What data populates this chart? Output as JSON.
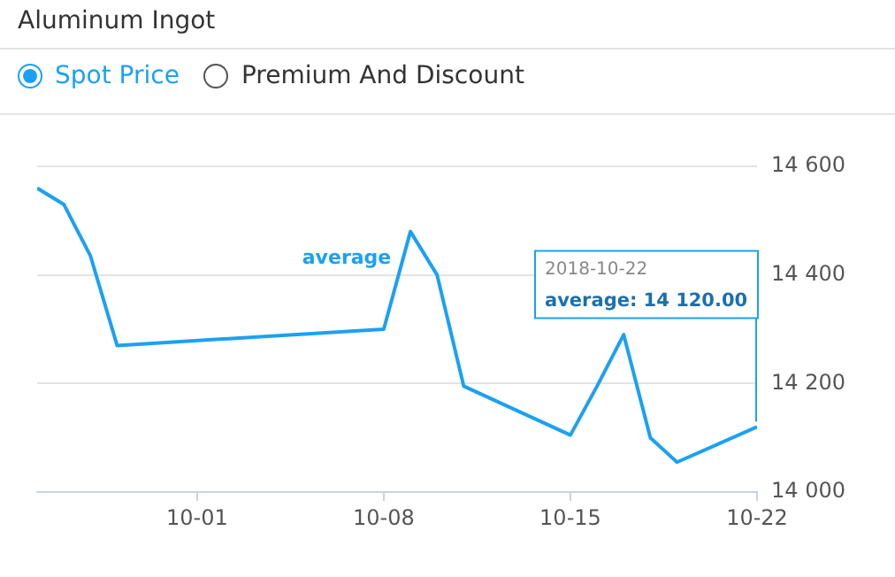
{
  "chart_data": {
    "type": "line",
    "title": "Aluminum Ingot",
    "annotations": [
      "Spot Price",
      "Premium And Discount",
      "2018-10-22",
      "average: 14 120.00"
    ],
    "x": [
      "2018-09-25",
      "2018-09-26",
      "2018-09-27",
      "2018-09-28",
      "2018-10-08",
      "2018-10-09",
      "2018-10-10",
      "2018-10-11",
      "2018-10-15",
      "2018-10-16",
      "2018-10-17",
      "2018-10-18",
      "2018-10-19",
      "2018-10-22"
    ],
    "series": [
      {
        "name": "average",
        "color": "#1ba1f2",
        "values": [
          14560,
          14530,
          14435,
          14270,
          14300,
          14480,
          14400,
          14195,
          14105,
          14195,
          14290,
          14100,
          14055,
          14120
        ]
      }
    ],
    "xlim": [
      "2018-09-25",
      "2018-10-22"
    ],
    "xticks": [
      {
        "value": "2018-10-01",
        "label": "10-01"
      },
      {
        "value": "2018-10-08",
        "label": "10-08"
      },
      {
        "value": "2018-10-15",
        "label": "10-15"
      },
      {
        "value": "2018-10-22",
        "label": "10-22"
      }
    ],
    "ylim": [
      14000,
      14600
    ],
    "yticks": [
      {
        "value": 14000,
        "label": "14 000"
      },
      {
        "value": 14200,
        "label": "14 200"
      },
      {
        "value": 14400,
        "label": "14 400"
      },
      {
        "value": 14600,
        "label": "14 600"
      }
    ],
    "grid": "y",
    "legend": "top",
    "marker": "none",
    "line_style": "solid"
  }
}
